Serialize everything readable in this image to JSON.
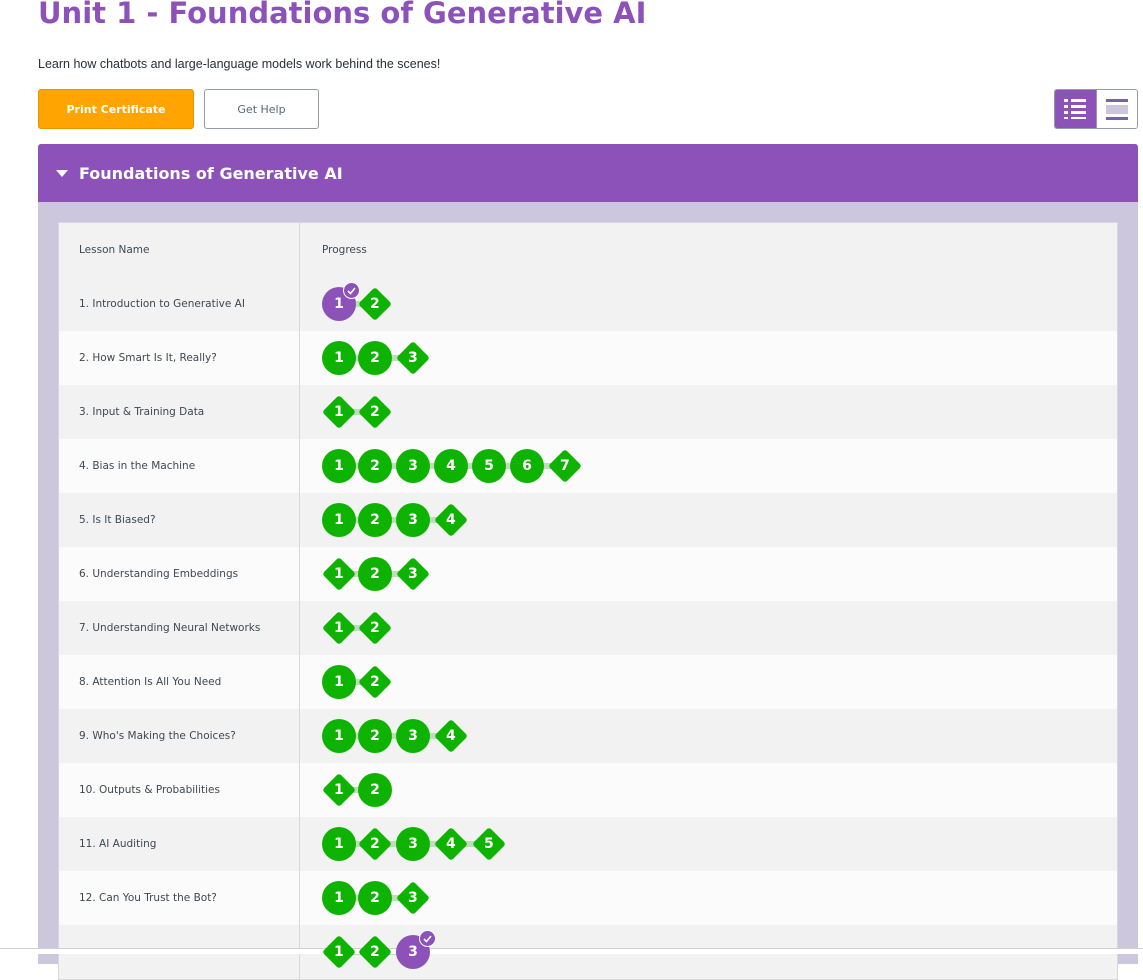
{
  "page": {
    "title": "Unit 1 - Foundations of Generative AI",
    "description": "Learn how chatbots and large-language models work behind the scenes!"
  },
  "buttons": {
    "print_certificate": "Print Certificate",
    "get_help": "Get Help"
  },
  "view_toggle": {
    "icons": [
      "list-detail-icon",
      "list-summary-icon"
    ],
    "selected": "detail"
  },
  "panel": {
    "title": "Foundations of Generative AI",
    "expanded": true
  },
  "table": {
    "headers": {
      "lesson_name": "Lesson Name",
      "progress": "Progress"
    },
    "lessons": [
      {
        "name": "1. Introduction to Generative AI",
        "levels": [
          {
            "n": "1",
            "shape": "circle",
            "color": "purple",
            "check": true
          },
          {
            "n": "2",
            "shape": "diamond",
            "color": "green"
          }
        ]
      },
      {
        "name": "2. How Smart Is It, Really?",
        "levels": [
          {
            "n": "1",
            "shape": "circle",
            "color": "green"
          },
          {
            "n": "2",
            "shape": "circle",
            "color": "green"
          },
          {
            "n": "3",
            "shape": "diamond",
            "color": "green"
          }
        ]
      },
      {
        "name": "3. Input & Training Data",
        "levels": [
          {
            "n": "1",
            "shape": "diamond",
            "color": "green"
          },
          {
            "n": "2",
            "shape": "diamond",
            "color": "green"
          }
        ]
      },
      {
        "name": "4. Bias in the Machine",
        "levels": [
          {
            "n": "1",
            "shape": "circle",
            "color": "green"
          },
          {
            "n": "2",
            "shape": "circle",
            "color": "green"
          },
          {
            "n": "3",
            "shape": "circle",
            "color": "green"
          },
          {
            "n": "4",
            "shape": "circle",
            "color": "green"
          },
          {
            "n": "5",
            "shape": "circle",
            "color": "green"
          },
          {
            "n": "6",
            "shape": "circle",
            "color": "green"
          },
          {
            "n": "7",
            "shape": "diamond",
            "color": "green"
          }
        ]
      },
      {
        "name": "5. Is It Biased?",
        "levels": [
          {
            "n": "1",
            "shape": "circle",
            "color": "green"
          },
          {
            "n": "2",
            "shape": "circle",
            "color": "green"
          },
          {
            "n": "3",
            "shape": "circle",
            "color": "green"
          },
          {
            "n": "4",
            "shape": "diamond",
            "color": "green"
          }
        ]
      },
      {
        "name": "6. Understanding Embeddings",
        "levels": [
          {
            "n": "1",
            "shape": "diamond",
            "color": "green"
          },
          {
            "n": "2",
            "shape": "circle",
            "color": "green"
          },
          {
            "n": "3",
            "shape": "diamond",
            "color": "green"
          }
        ]
      },
      {
        "name": "7. Understanding Neural Networks",
        "levels": [
          {
            "n": "1",
            "shape": "diamond",
            "color": "green"
          },
          {
            "n": "2",
            "shape": "diamond",
            "color": "green"
          }
        ]
      },
      {
        "name": "8. Attention Is All You Need",
        "levels": [
          {
            "n": "1",
            "shape": "circle",
            "color": "green"
          },
          {
            "n": "2",
            "shape": "diamond",
            "color": "green"
          }
        ]
      },
      {
        "name": "9. Who's Making the Choices?",
        "levels": [
          {
            "n": "1",
            "shape": "circle",
            "color": "green"
          },
          {
            "n": "2",
            "shape": "circle",
            "color": "green"
          },
          {
            "n": "3",
            "shape": "circle",
            "color": "green"
          },
          {
            "n": "4",
            "shape": "diamond",
            "color": "green"
          }
        ]
      },
      {
        "name": "10. Outputs & Probabilities",
        "levels": [
          {
            "n": "1",
            "shape": "diamond",
            "color": "green"
          },
          {
            "n": "2",
            "shape": "circle",
            "color": "green"
          }
        ]
      },
      {
        "name": "11. AI Auditing",
        "levels": [
          {
            "n": "1",
            "shape": "circle",
            "color": "green"
          },
          {
            "n": "2",
            "shape": "diamond",
            "color": "green"
          },
          {
            "n": "3",
            "shape": "circle",
            "color": "green"
          },
          {
            "n": "4",
            "shape": "diamond",
            "color": "green"
          },
          {
            "n": "5",
            "shape": "diamond",
            "color": "green"
          }
        ]
      },
      {
        "name": "12. Can You Trust the Bot?",
        "levels": [
          {
            "n": "1",
            "shape": "circle",
            "color": "green"
          },
          {
            "n": "2",
            "shape": "circle",
            "color": "green"
          },
          {
            "n": "3",
            "shape": "diamond",
            "color": "green"
          }
        ]
      },
      {
        "name": "",
        "levels": [
          {
            "n": "1",
            "shape": "diamond",
            "color": "green"
          },
          {
            "n": "2",
            "shape": "diamond",
            "color": "green"
          },
          {
            "n": "3",
            "shape": "circle",
            "color": "purple",
            "check": true
          }
        ]
      }
    ]
  },
  "colors": {
    "brand_purple": "#8c52ba",
    "print_orange": "#ffa400",
    "complete_green": "#0eb300",
    "panel_lavender": "#cdc7de"
  }
}
